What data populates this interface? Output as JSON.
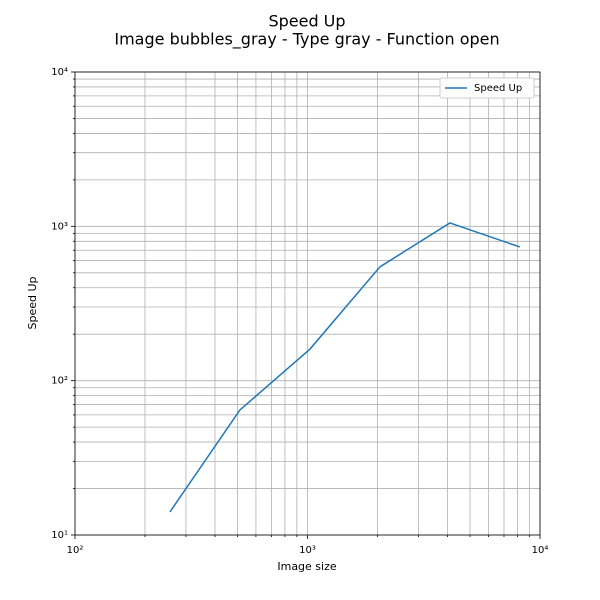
{
  "chart_data": {
    "type": "line",
    "title": "Speed Up",
    "subtitle": "Image bubbles_gray - Type gray - Function open",
    "xlabel": "Image size",
    "ylabel": "Speed Up",
    "x": [
      256,
      512,
      1024,
      2048,
      4096,
      8192
    ],
    "series": [
      {
        "name": "Speed Up",
        "color": "#1f77b4",
        "values": [
          14.1,
          64.6,
          160,
          546,
          1052,
          735
        ]
      }
    ],
    "xlog": true,
    "ylog": true,
    "xlim": [
      100,
      10000
    ],
    "ylim": [
      10,
      10000
    ],
    "xticks": [
      {
        "value": 100,
        "label": "10²"
      },
      {
        "value": 1000,
        "label": "10³"
      },
      {
        "value": 10000,
        "label": "10⁴"
      }
    ],
    "yticks": [
      {
        "value": 10,
        "label": "10¹"
      },
      {
        "value": 100,
        "label": "10²"
      },
      {
        "value": 1000,
        "label": "10³"
      },
      {
        "value": 10000,
        "label": "10⁴"
      }
    ],
    "xminor_ticks": [
      200,
      300,
      400,
      500,
      600,
      700,
      800,
      900,
      2000,
      3000,
      4000,
      5000,
      6000,
      7000,
      8000,
      9000
    ],
    "yminor_ticks": [
      20,
      30,
      40,
      50,
      60,
      70,
      80,
      90,
      200,
      300,
      400,
      500,
      600,
      700,
      800,
      900,
      2000,
      3000,
      4000,
      5000,
      6000,
      7000,
      8000,
      9000
    ],
    "grid": true,
    "legend": "upper right"
  }
}
